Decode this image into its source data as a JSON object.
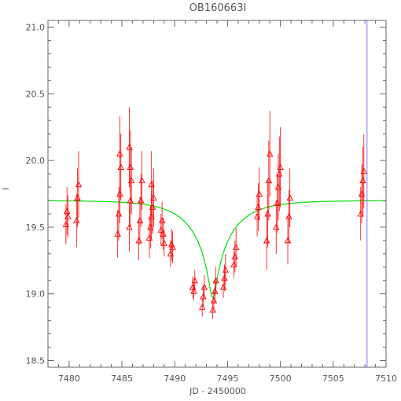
{
  "chart_data": {
    "type": "scatter",
    "title": "OB160663I",
    "xlabel": "JD - 2450000",
    "ylabel": "I",
    "xlim": [
      7478,
      7510
    ],
    "ylim": [
      21.05,
      18.45
    ],
    "y_inverted": true,
    "grid": false,
    "x_ticks": [
      7480,
      7485,
      7490,
      7495,
      7500,
      7505,
      7510
    ],
    "x_tick_labels": [
      "7480",
      "7485",
      "7490",
      "7495",
      "7500",
      "7505",
      "7510"
    ],
    "x_minor_step": 1,
    "y_ticks": [
      18.5,
      19.0,
      19.5,
      20.0,
      20.5,
      21.0
    ],
    "y_tick_labels": [
      "18.5",
      "19.0",
      "19.5",
      "20.0",
      "20.5",
      "21.0"
    ],
    "y_minor_step": 0.1,
    "colors": {
      "data": "#ff0000",
      "model": "#00dd00",
      "marker_line": "#7777ff",
      "axes": "#666666"
    },
    "series": [
      {
        "style": "triangles-with-errorbars",
        "color": "#ff0000",
        "x": [
          7479.7,
          7479.8,
          7479.9,
          7480.7,
          7480.8,
          7480.9,
          7484.6,
          7484.7,
          7484.8,
          7484.9,
          7484.8,
          7485.7,
          7485.8,
          7485.9,
          7485.8,
          7485.7,
          7486.6,
          7486.7,
          7486.8,
          7486.9,
          7487.6,
          7487.7,
          7487.8,
          7487.9,
          7488.0,
          7487.8,
          7488.7,
          7488.8,
          7488.9,
          7489.0,
          7489.6,
          7489.7,
          7489.8,
          7491.7,
          7491.8,
          7491.9,
          7492.6,
          7492.7,
          7492.8,
          7493.6,
          7493.7,
          7493.8,
          7493.9,
          7494.6,
          7494.7,
          7494.8,
          7495.6,
          7495.7,
          7495.8,
          7497.8,
          7497.9,
          7498.0,
          7498.7,
          7498.8,
          7498.9,
          7499.0,
          7499.6,
          7499.7,
          7499.8,
          7499.9,
          7500.0,
          7500.7,
          7500.8,
          7500.9,
          7507.6,
          7507.7,
          7507.8,
          7507.9
        ],
        "y": [
          19.52,
          19.62,
          19.58,
          19.55,
          19.72,
          19.82,
          19.45,
          19.6,
          19.75,
          19.95,
          20.05,
          19.5,
          19.7,
          19.85,
          19.95,
          20.1,
          19.4,
          19.55,
          19.7,
          19.85,
          19.42,
          19.5,
          19.58,
          19.65,
          19.72,
          19.82,
          19.48,
          19.55,
          19.45,
          19.38,
          19.3,
          19.37,
          19.35,
          19.05,
          19.02,
          19.1,
          18.9,
          18.98,
          19.05,
          18.88,
          18.95,
          19.02,
          19.1,
          19.05,
          19.12,
          19.18,
          19.22,
          19.28,
          19.35,
          19.58,
          19.65,
          19.75,
          19.4,
          19.6,
          19.85,
          20.05,
          19.5,
          19.68,
          19.8,
          19.9,
          19.95,
          19.4,
          19.58,
          19.72,
          19.6,
          19.75,
          19.85,
          19.92
        ],
        "err": [
          0.15,
          0.18,
          0.16,
          0.2,
          0.22,
          0.25,
          0.18,
          0.2,
          0.22,
          0.25,
          0.28,
          0.18,
          0.2,
          0.25,
          0.28,
          0.3,
          0.15,
          0.18,
          0.2,
          0.22,
          0.15,
          0.16,
          0.18,
          0.2,
          0.22,
          0.25,
          0.12,
          0.14,
          0.12,
          0.1,
          0.1,
          0.12,
          0.12,
          0.08,
          0.07,
          0.08,
          0.07,
          0.08,
          0.09,
          0.07,
          0.08,
          0.09,
          0.1,
          0.08,
          0.1,
          0.12,
          0.1,
          0.12,
          0.14,
          0.15,
          0.18,
          0.2,
          0.22,
          0.25,
          0.3,
          0.32,
          0.2,
          0.22,
          0.25,
          0.28,
          0.3,
          0.18,
          0.2,
          0.22,
          0.2,
          0.22,
          0.25,
          0.28
        ]
      },
      {
        "style": "line",
        "color": "#00dd00",
        "model": "point-lens",
        "t0": 7493.6,
        "tE": 4.0,
        "u0": 0.08,
        "base_mag": 19.7,
        "peak_mag": 18.97
      },
      {
        "style": "vline",
        "color": "#7777ff",
        "x": 7508.2
      }
    ]
  }
}
